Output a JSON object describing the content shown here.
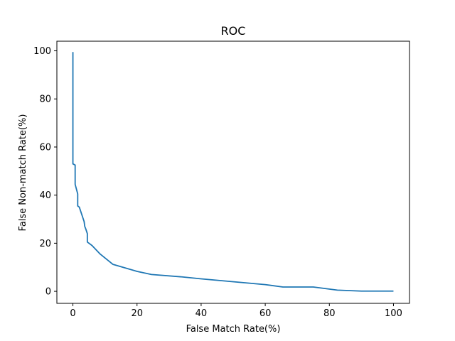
{
  "chart_data": {
    "type": "line",
    "title": "ROC",
    "xlabel": "False Match Rate(%)",
    "ylabel": "False Non-match Rate(%)",
    "xlim": [
      -5,
      105
    ],
    "ylim": [
      -5,
      104
    ],
    "xticks": [
      0,
      20,
      40,
      60,
      80,
      100
    ],
    "yticks": [
      0,
      20,
      40,
      60,
      80,
      100
    ],
    "xtick_labels": [
      "0",
      "20",
      "40",
      "60",
      "80",
      "100"
    ],
    "ytick_labels": [
      "0",
      "20",
      "40",
      "60",
      "80",
      "100"
    ],
    "grid": false,
    "series": [
      {
        "color": "#1f77b4",
        "x": [
          0,
          0,
          0,
          0.7,
          0.7,
          1.5,
          1.5,
          2.0,
          3.5,
          3.7,
          4.0,
          4.5,
          4.5,
          6,
          8.5,
          12.5,
          20,
          24.5,
          34,
          40,
          60,
          65.5,
          75,
          82.5,
          90,
          100
        ],
        "y": [
          99.5,
          70,
          53,
          52.5,
          44.5,
          40.5,
          35.5,
          35,
          29,
          27,
          26,
          24,
          20.5,
          19,
          15.5,
          11.2,
          8.3,
          7.0,
          6.0,
          5.2,
          2.8,
          1.8,
          1.8,
          0.5,
          0.1,
          0.1
        ]
      }
    ]
  }
}
